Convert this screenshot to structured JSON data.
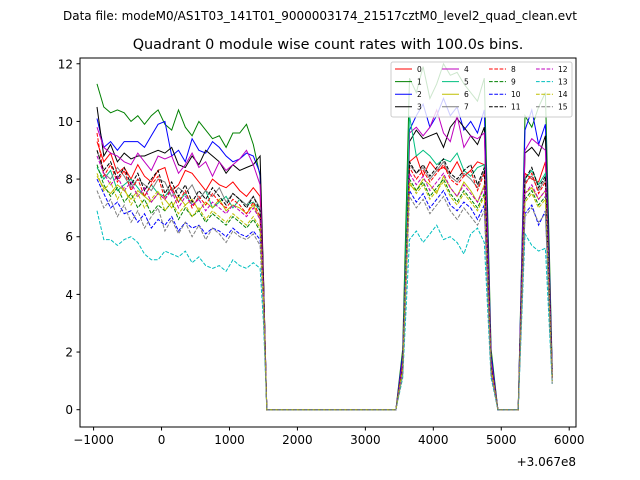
{
  "chart_data": {
    "type": "line",
    "suptitle": "Data file: modeM0/AS1T03_141T01_9000003174_21517cztM0_level2_quad_clean.evt",
    "title": "Quadrant 0 module wise count rates with 100.0s bins.",
    "xlabel": "",
    "ylabel": "",
    "x_offset_label": "+3.067e8",
    "xlim": [
      -1200,
      6100
    ],
    "ylim": [
      -0.6,
      12.2
    ],
    "x_ticks": [
      -1000,
      0,
      1000,
      2000,
      3000,
      4000,
      5000,
      6000
    ],
    "x_tick_labels": [
      "−1000",
      "0",
      "1000",
      "2000",
      "3000",
      "4000",
      "5000",
      "6000"
    ],
    "y_ticks": [
      0,
      2,
      4,
      6,
      8,
      10,
      12
    ],
    "y_tick_labels": [
      "0",
      "2",
      "4",
      "6",
      "8",
      "10",
      "12"
    ],
    "grid": false,
    "legend_position": "top-right",
    "legend_columns": 4,
    "x": [
      -950,
      -850,
      -750,
      -650,
      -550,
      -450,
      -350,
      -250,
      -150,
      -50,
      50,
      150,
      250,
      350,
      450,
      550,
      650,
      750,
      850,
      950,
      1050,
      1150,
      1250,
      1350,
      1450,
      1500,
      1550,
      1650,
      1750,
      1850,
      1950,
      2050,
      2150,
      2250,
      2350,
      2450,
      2550,
      2650,
      2750,
      2850,
      2950,
      3050,
      3150,
      3250,
      3350,
      3450,
      3550,
      3650,
      3750,
      3850,
      3950,
      4050,
      4150,
      4250,
      4350,
      4450,
      4550,
      4650,
      4750,
      4850,
      4950,
      5050,
      5150,
      5250,
      5350,
      5450,
      5550,
      5650,
      5750
    ],
    "series": [
      {
        "name": "0",
        "color": "#ff0000",
        "dash": "solid",
        "values": [
          9.3,
          8.6,
          8.9,
          8.2,
          8.4,
          8.0,
          8.5,
          8.1,
          7.9,
          8.3,
          8.4,
          7.6,
          7.8,
          8.3,
          8.2,
          7.9,
          7.6,
          8.0,
          7.8,
          7.7,
          7.9,
          7.6,
          7.4,
          7.7,
          7.4,
          4.5,
          0.0,
          0,
          0,
          0,
          0,
          0,
          0,
          0,
          0,
          0,
          0,
          0,
          0,
          0,
          0,
          0,
          0,
          0,
          0,
          0,
          1.6,
          8.6,
          8.8,
          8.1,
          8.6,
          8.3,
          8.4,
          8.2,
          8.6,
          8.1,
          8.3,
          8.6,
          8.5,
          1.6,
          0,
          0,
          0,
          0,
          8.2,
          8.0,
          7.9,
          8.6,
          1.2
        ]
      },
      {
        "name": "1",
        "color": "#008000",
        "dash": "solid",
        "values": [
          11.3,
          10.5,
          10.3,
          10.4,
          10.3,
          10.0,
          10.2,
          9.9,
          10.2,
          10.4,
          9.9,
          9.7,
          10.4,
          9.8,
          9.5,
          10.0,
          9.7,
          9.4,
          9.5,
          9.1,
          9.6,
          9.6,
          9.9,
          9.2,
          8.1,
          4.5,
          0.0,
          0,
          0,
          0,
          0,
          0,
          0,
          0,
          0,
          0,
          0,
          0,
          0,
          0,
          0,
          0,
          0,
          0,
          0,
          0,
          2.1,
          11.5,
          11.0,
          11.9,
          10.8,
          11.3,
          12.0,
          11.6,
          11.7,
          11.3,
          11.0,
          10.7,
          11.5,
          2.1,
          0,
          0,
          0,
          0,
          10.2,
          9.8,
          10.5,
          11.0,
          1.5
        ]
      },
      {
        "name": "2",
        "color": "#0000ff",
        "dash": "solid",
        "values": [
          10.1,
          9.1,
          9.3,
          9.0,
          9.3,
          9.3,
          9.3,
          9.1,
          9.5,
          9.9,
          10.0,
          8.8,
          9.0,
          8.6,
          9.4,
          9.0,
          8.9,
          9.3,
          9.1,
          8.8,
          8.6,
          8.7,
          8.9,
          8.8,
          8.2,
          4.4,
          0.0,
          0,
          0,
          0,
          0,
          0,
          0,
          0,
          0,
          0,
          0,
          0,
          0,
          0,
          0,
          0,
          0,
          0,
          0,
          0,
          1.9,
          9.7,
          10.2,
          10.6,
          9.8,
          10.2,
          10.8,
          10.2,
          10.5,
          9.7,
          10.0,
          9.6,
          10.4,
          1.9,
          0,
          0,
          0,
          0,
          9.7,
          10.4,
          9.2,
          9.9,
          1.4
        ]
      },
      {
        "name": "3",
        "color": "#000000",
        "dash": "solid",
        "values": [
          10.5,
          8.8,
          9.2,
          8.6,
          8.9,
          8.7,
          8.8,
          8.8,
          8.9,
          9.0,
          8.9,
          9.1,
          8.5,
          8.4,
          8.8,
          8.5,
          9.0,
          8.8,
          8.6,
          8.2,
          8.5,
          8.3,
          8.4,
          8.5,
          8.8,
          4.6,
          0.0,
          0,
          0,
          0,
          0,
          0,
          0,
          0,
          0,
          0,
          0,
          0,
          0,
          0,
          0,
          0,
          0,
          0,
          0,
          0,
          1.7,
          9.3,
          9.7,
          9.4,
          9.5,
          9.6,
          9.1,
          9.8,
          10.1,
          9.8,
          9.5,
          9.2,
          9.8,
          1.7,
          0,
          0,
          0,
          0,
          8.9,
          9.1,
          8.8,
          9.5,
          1.3
        ]
      },
      {
        "name": "4",
        "color": "#bf00bf",
        "dash": "solid",
        "values": [
          9.8,
          9.1,
          8.9,
          8.8,
          8.6,
          8.5,
          8.9,
          8.6,
          8.3,
          8.8,
          8.7,
          8.8,
          8.2,
          8.5,
          8.9,
          8.4,
          8.6,
          8.1,
          8.6,
          8.3,
          8.5,
          8.7,
          9.0,
          8.5,
          7.8,
          4.3,
          0.0,
          0,
          0,
          0,
          0,
          0,
          0,
          0,
          0,
          0,
          0,
          0,
          0,
          0,
          0,
          0,
          0,
          0,
          0,
          0,
          1.7,
          9.6,
          9.8,
          9.5,
          9.8,
          10.4,
          9.6,
          9.3,
          10.2,
          9.1,
          9.5,
          9.4,
          9.6,
          1.7,
          0,
          0,
          0,
          0,
          9.0,
          9.4,
          9.2,
          9.0,
          1.3
        ]
      },
      {
        "name": "5",
        "color": "#00bf7f",
        "dash": "solid",
        "values": [
          8.4,
          8.0,
          8.3,
          7.6,
          7.8,
          8.0,
          7.7,
          7.4,
          7.8,
          7.5,
          7.4,
          7.7,
          7.2,
          7.5,
          7.1,
          7.3,
          7.6,
          7.0,
          7.2,
          7.4,
          7.0,
          7.3,
          7.1,
          7.2,
          6.9,
          4.0,
          0.0,
          0,
          0,
          0,
          0,
          0,
          0,
          0,
          0,
          0,
          0,
          0,
          0,
          0,
          0,
          0,
          0,
          0,
          0,
          0,
          1.5,
          10.2,
          8.8,
          9.0,
          8.8,
          8.5,
          8.7,
          8.6,
          8.9,
          8.3,
          8.1,
          8.4,
          8.5,
          1.5,
          0,
          0,
          0,
          0,
          8.0,
          8.3,
          7.8,
          8.2,
          1.2
        ]
      },
      {
        "name": "6",
        "color": "#bfbf00",
        "dash": "solid",
        "values": [
          8.1,
          7.7,
          7.5,
          7.8,
          7.6,
          7.3,
          7.6,
          7.4,
          7.2,
          7.5,
          7.3,
          7.0,
          7.4,
          7.1,
          7.3,
          6.9,
          7.2,
          7.0,
          7.3,
          6.9,
          7.1,
          7.0,
          6.8,
          7.1,
          6.6,
          3.9,
          0.0,
          0,
          0,
          0,
          0,
          0,
          0,
          0,
          0,
          0,
          0,
          0,
          0,
          0,
          0,
          0,
          0,
          0,
          0,
          0,
          1.4,
          7.8,
          7.6,
          8.0,
          7.8,
          7.5,
          8.1,
          7.7,
          7.4,
          7.9,
          7.6,
          7.2,
          7.8,
          1.4,
          0,
          0,
          0,
          0,
          7.5,
          7.7,
          7.3,
          7.6,
          1.1
        ]
      },
      {
        "name": "7",
        "color": "#7f7f7f",
        "dash": "solid",
        "values": [
          9.0,
          8.2,
          8.0,
          8.4,
          8.1,
          7.7,
          8.0,
          7.8,
          7.6,
          8.0,
          7.9,
          7.4,
          7.7,
          7.5,
          7.8,
          7.3,
          7.6,
          7.4,
          7.7,
          7.2,
          7.5,
          7.3,
          7.1,
          7.4,
          7.0,
          4.1,
          0.0,
          0,
          0,
          0,
          0,
          0,
          0,
          0,
          0,
          0,
          0,
          0,
          0,
          0,
          0,
          0,
          0,
          0,
          0,
          0,
          1.5,
          8.5,
          8.2,
          8.4,
          8.0,
          8.3,
          8.6,
          8.1,
          7.9,
          8.2,
          8.0,
          7.7,
          8.3,
          1.5,
          0,
          0,
          0,
          0,
          7.9,
          8.1,
          7.6,
          8.0,
          1.1
        ]
      },
      {
        "name": "8",
        "color": "#ff0000",
        "dash": "dashed",
        "values": [
          9.6,
          8.1,
          8.5,
          7.9,
          8.3,
          7.6,
          8.0,
          7.4,
          7.8,
          8.1,
          7.3,
          7.7,
          7.2,
          7.6,
          7.0,
          7.4,
          7.1,
          7.5,
          7.2,
          7.0,
          7.3,
          7.1,
          6.8,
          7.2,
          6.7,
          4.0,
          0.0,
          0,
          0,
          0,
          0,
          0,
          0,
          0,
          0,
          0,
          0,
          0,
          0,
          0,
          0,
          0,
          0,
          0,
          0,
          0,
          1.5,
          8.4,
          8.0,
          8.3,
          7.9,
          8.2,
          8.5,
          8.0,
          7.8,
          8.1,
          8.3,
          7.6,
          8.2,
          1.5,
          0,
          0,
          0,
          0,
          7.8,
          8.2,
          7.5,
          7.9,
          1.1
        ]
      },
      {
        "name": "9",
        "color": "#008000",
        "dash": "dashed",
        "values": [
          8.5,
          7.8,
          7.4,
          7.7,
          7.2,
          7.5,
          7.0,
          7.3,
          6.8,
          7.1,
          6.9,
          7.2,
          6.6,
          7.0,
          6.7,
          6.9,
          6.5,
          6.8,
          6.6,
          6.4,
          6.7,
          6.5,
          6.3,
          6.6,
          6.2,
          3.7,
          0.0,
          0,
          0,
          0,
          0,
          0,
          0,
          0,
          0,
          0,
          0,
          0,
          0,
          0,
          0,
          0,
          0,
          0,
          0,
          0,
          1.4,
          8.0,
          7.6,
          7.9,
          7.4,
          7.7,
          8.0,
          7.5,
          7.2,
          7.6,
          7.3,
          7.0,
          7.5,
          1.4,
          0,
          0,
          0,
          0,
          7.3,
          7.6,
          7.1,
          7.4,
          1.0
        ]
      },
      {
        "name": "10",
        "color": "#0000ff",
        "dash": "dashed",
        "values": [
          8.0,
          7.5,
          7.0,
          7.2,
          6.8,
          6.9,
          6.5,
          6.8,
          6.3,
          6.6,
          6.4,
          6.7,
          6.2,
          6.5,
          6.3,
          6.4,
          6.1,
          6.3,
          6.2,
          6.0,
          6.3,
          6.1,
          6.0,
          6.2,
          5.9,
          3.5,
          0.0,
          0,
          0,
          0,
          0,
          0,
          0,
          0,
          0,
          0,
          0,
          0,
          0,
          0,
          0,
          0,
          0,
          0,
          0,
          0,
          1.3,
          7.6,
          7.2,
          7.5,
          7.0,
          7.3,
          7.6,
          7.1,
          6.9,
          7.2,
          7.0,
          6.6,
          7.1,
          1.3,
          0,
          0,
          0,
          0,
          6.8,
          7.1,
          6.4,
          6.9,
          1.0
        ]
      },
      {
        "name": "11",
        "color": "#000000",
        "dash": "dashed",
        "values": [
          9.0,
          8.3,
          8.6,
          8.0,
          8.4,
          7.8,
          8.2,
          7.6,
          8.0,
          8.3,
          7.5,
          7.9,
          7.4,
          7.8,
          7.2,
          7.6,
          7.3,
          7.7,
          7.4,
          7.1,
          7.5,
          7.3,
          7.0,
          7.4,
          6.9,
          4.1,
          0.0,
          0,
          0,
          0,
          0,
          0,
          0,
          0,
          0,
          0,
          0,
          0,
          0,
          0,
          0,
          0,
          0,
          0,
          0,
          0,
          1.5,
          8.6,
          8.2,
          8.5,
          8.1,
          8.4,
          8.7,
          8.2,
          8.0,
          8.3,
          8.5,
          7.8,
          8.4,
          1.5,
          0,
          0,
          0,
          0,
          8.0,
          8.4,
          7.7,
          8.1,
          1.1
        ]
      },
      {
        "name": "12",
        "color": "#bf00bf",
        "dash": "dashed",
        "values": [
          8.8,
          8.2,
          7.8,
          8.1,
          7.6,
          7.9,
          7.4,
          7.7,
          7.2,
          7.5,
          7.3,
          7.6,
          7.0,
          7.4,
          7.1,
          7.3,
          6.9,
          7.2,
          7.0,
          6.8,
          7.1,
          6.9,
          6.7,
          7.0,
          6.6,
          3.9,
          0.0,
          0,
          0,
          0,
          0,
          0,
          0,
          0,
          0,
          0,
          0,
          0,
          0,
          0,
          0,
          0,
          0,
          0,
          0,
          0,
          1.4,
          8.2,
          7.8,
          8.1,
          7.6,
          7.9,
          8.2,
          7.7,
          7.4,
          7.8,
          7.5,
          7.2,
          7.7,
          1.4,
          0,
          0,
          0,
          0,
          7.5,
          7.8,
          7.3,
          7.6,
          1.1
        ]
      },
      {
        "name": "13",
        "color": "#00bfbf",
        "dash": "dashed",
        "values": [
          6.9,
          5.9,
          5.9,
          5.7,
          5.9,
          6.0,
          5.8,
          5.4,
          5.2,
          5.2,
          5.5,
          5.4,
          5.3,
          5.5,
          5.1,
          5.3,
          5.0,
          4.9,
          5.0,
          4.8,
          5.2,
          5.0,
          4.9,
          5.1,
          4.9,
          3.0,
          0.0,
          0,
          0,
          0,
          0,
          0,
          0,
          0,
          0,
          0,
          0,
          0,
          0,
          0,
          0,
          0,
          0,
          0,
          0,
          0,
          1.1,
          5.9,
          6.2,
          5.8,
          6.1,
          6.4,
          5.9,
          6.0,
          5.8,
          5.4,
          6.1,
          6.3,
          5.8,
          1.1,
          0,
          0,
          0,
          0,
          6.1,
          5.7,
          5.5,
          5.6,
          0.9
        ]
      },
      {
        "name": "14",
        "color": "#bfbf00",
        "dash": "dashed",
        "values": [
          8.2,
          7.6,
          7.9,
          7.3,
          7.7,
          7.1,
          7.5,
          7.0,
          7.3,
          7.6,
          6.9,
          7.2,
          6.8,
          7.1,
          6.7,
          7.0,
          6.6,
          6.9,
          6.7,
          6.5,
          6.8,
          6.6,
          6.4,
          6.7,
          6.3,
          3.8,
          0.0,
          0,
          0,
          0,
          0,
          0,
          0,
          0,
          0,
          0,
          0,
          0,
          0,
          0,
          0,
          0,
          0,
          0,
          0,
          0,
          1.4,
          7.9,
          7.5,
          7.8,
          7.3,
          7.6,
          7.9,
          7.4,
          7.1,
          7.5,
          7.2,
          6.9,
          7.4,
          1.4,
          0,
          0,
          0,
          0,
          7.2,
          7.5,
          7.0,
          7.3,
          1.0
        ]
      },
      {
        "name": "15",
        "color": "#7f7f7f",
        "dash": "dashed",
        "values": [
          7.6,
          7.0,
          7.3,
          6.7,
          7.1,
          6.5,
          6.9,
          6.3,
          6.7,
          7.0,
          6.2,
          6.6,
          6.1,
          6.5,
          6.0,
          6.4,
          5.9,
          6.3,
          6.1,
          5.8,
          6.2,
          6.0,
          5.9,
          6.1,
          5.7,
          3.4,
          0.0,
          0,
          0,
          0,
          0,
          0,
          0,
          0,
          0,
          0,
          0,
          0,
          0,
          0,
          0,
          0,
          0,
          0,
          0,
          0,
          1.2,
          7.4,
          7.0,
          7.3,
          6.8,
          7.1,
          7.4,
          6.9,
          6.6,
          7.0,
          6.7,
          6.4,
          6.9,
          1.2,
          0,
          0,
          0,
          0,
          6.7,
          7.0,
          6.5,
          6.8,
          0.9
        ]
      }
    ]
  }
}
